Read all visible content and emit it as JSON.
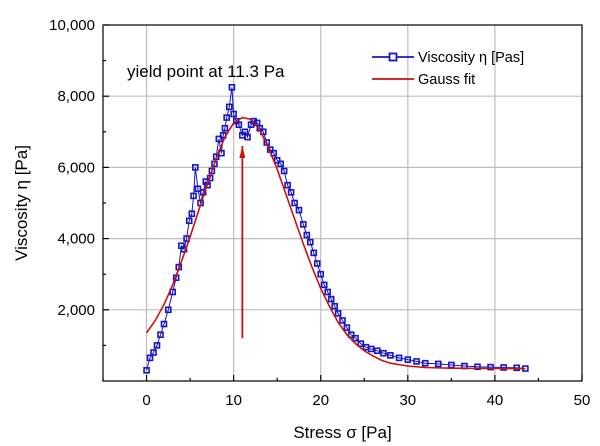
{
  "chart_data": {
    "type": "scatter",
    "xlabel": "Stress σ [Pa]",
    "ylabel": "Viscosity η [Pa]",
    "xlim": [
      -5,
      50
    ],
    "ylim": [
      0,
      10000
    ],
    "x_ticks": [
      0,
      10,
      20,
      30,
      40,
      50
    ],
    "x_tick_labels": [
      "0",
      "10",
      "20",
      "30",
      "40",
      "50"
    ],
    "y_ticks": [
      2000,
      4000,
      6000,
      8000,
      10000
    ],
    "y_tick_labels": [
      "2,000",
      "4,000",
      "6,000",
      "8,000",
      "10,000"
    ],
    "grid": true,
    "legend_position": "top-right",
    "annotation": {
      "text": "yield point at 11.3 Pa",
      "arrow_x": 11,
      "arrow_from_y": 1200,
      "arrow_to_y": 6600
    },
    "series": [
      {
        "name": "Viscosity η [Pas]",
        "kind": "scatter",
        "color": "#1515c8",
        "marker": "square",
        "points": [
          [
            0,
            300
          ],
          [
            0.4,
            650
          ],
          [
            0.8,
            800
          ],
          [
            1.2,
            1000
          ],
          [
            1.6,
            1300
          ],
          [
            2.0,
            1600
          ],
          [
            2.5,
            2000
          ],
          [
            3.0,
            2500
          ],
          [
            3.4,
            2900
          ],
          [
            3.7,
            3200
          ],
          [
            4.0,
            3800
          ],
          [
            4.3,
            3700
          ],
          [
            4.6,
            4000
          ],
          [
            4.9,
            4500
          ],
          [
            5.2,
            4700
          ],
          [
            5.4,
            5200
          ],
          [
            5.6,
            6000
          ],
          [
            5.9,
            5400
          ],
          [
            6.2,
            5000
          ],
          [
            6.5,
            5300
          ],
          [
            6.8,
            5600
          ],
          [
            7.0,
            5500
          ],
          [
            7.3,
            5700
          ],
          [
            7.5,
            5900
          ],
          [
            7.8,
            6100
          ],
          [
            8.0,
            6300
          ],
          [
            8.3,
            6800
          ],
          [
            8.6,
            6400
          ],
          [
            8.8,
            6900
          ],
          [
            9.0,
            7100
          ],
          [
            9.2,
            7400
          ],
          [
            9.5,
            7700
          ],
          [
            9.8,
            8250
          ],
          [
            10.0,
            7500
          ],
          [
            10.3,
            7300
          ],
          [
            10.6,
            7200
          ],
          [
            11.0,
            6900
          ],
          [
            11.3,
            7000
          ],
          [
            11.6,
            6850
          ],
          [
            12.0,
            7200
          ],
          [
            12.3,
            7300
          ],
          [
            12.7,
            7250
          ],
          [
            13.0,
            7100
          ],
          [
            13.4,
            7000
          ],
          [
            13.8,
            6700
          ],
          [
            14.2,
            6500
          ],
          [
            14.6,
            6400
          ],
          [
            15.0,
            6200
          ],
          [
            15.4,
            6100
          ],
          [
            15.8,
            5900
          ],
          [
            16.2,
            5500
          ],
          [
            16.6,
            5300
          ],
          [
            17.0,
            5000
          ],
          [
            17.5,
            4800
          ],
          [
            18.0,
            4400
          ],
          [
            18.4,
            4100
          ],
          [
            18.8,
            3900
          ],
          [
            19.2,
            3600
          ],
          [
            19.6,
            3300
          ],
          [
            20.0,
            3000
          ],
          [
            20.4,
            2700
          ],
          [
            20.8,
            2500
          ],
          [
            21.2,
            2300
          ],
          [
            21.6,
            2100
          ],
          [
            22.0,
            1900
          ],
          [
            22.5,
            1700
          ],
          [
            23.0,
            1500
          ],
          [
            23.5,
            1300
          ],
          [
            24.0,
            1200
          ],
          [
            24.6,
            1050
          ],
          [
            25.2,
            950
          ],
          [
            25.8,
            900
          ],
          [
            26.5,
            850
          ],
          [
            27.2,
            780
          ],
          [
            28.0,
            720
          ],
          [
            29.0,
            650
          ],
          [
            30.0,
            600
          ],
          [
            31.0,
            550
          ],
          [
            32.0,
            500
          ],
          [
            33.5,
            480
          ],
          [
            35.0,
            450
          ],
          [
            36.5,
            420
          ],
          [
            38.0,
            400
          ],
          [
            39.5,
            390
          ],
          [
            41.0,
            380
          ],
          [
            42.5,
            370
          ],
          [
            43.5,
            350
          ]
        ]
      },
      {
        "name": "Gauss fit",
        "kind": "line",
        "color": "#cc1111",
        "points": [
          [
            0,
            1350
          ],
          [
            1,
            1700
          ],
          [
            2,
            2150
          ],
          [
            3,
            2700
          ],
          [
            4,
            3350
          ],
          [
            5,
            4050
          ],
          [
            6,
            4800
          ],
          [
            7,
            5550
          ],
          [
            8,
            6250
          ],
          [
            9,
            6850
          ],
          [
            10,
            7250
          ],
          [
            11,
            7400
          ],
          [
            12,
            7350
          ],
          [
            13,
            7050
          ],
          [
            14,
            6550
          ],
          [
            15,
            5950
          ],
          [
            16,
            5250
          ],
          [
            17,
            4550
          ],
          [
            18,
            3850
          ],
          [
            19,
            3200
          ],
          [
            20,
            2600
          ],
          [
            21,
            2100
          ],
          [
            22,
            1650
          ],
          [
            23,
            1300
          ],
          [
            24,
            1050
          ],
          [
            25,
            850
          ],
          [
            26,
            700
          ],
          [
            27,
            580
          ],
          [
            28,
            500
          ],
          [
            30,
            420
          ],
          [
            32,
            380
          ],
          [
            35,
            360
          ],
          [
            40,
            350
          ],
          [
            43.5,
            345
          ]
        ]
      }
    ]
  }
}
